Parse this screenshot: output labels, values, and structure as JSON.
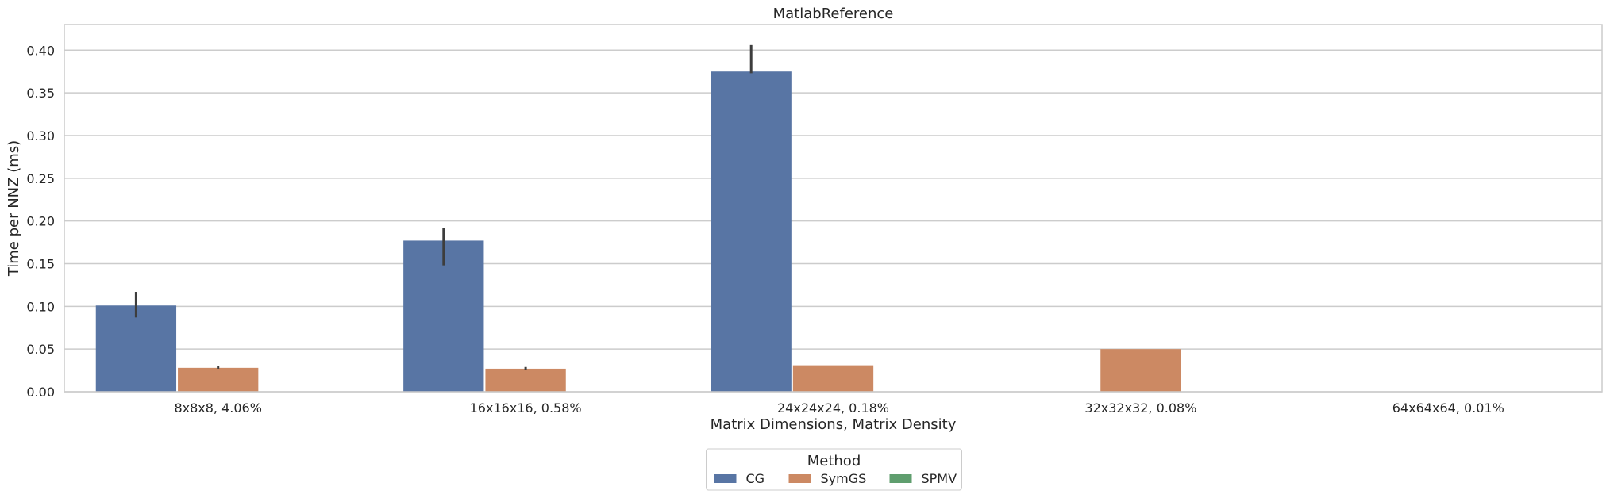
{
  "chart_data": {
    "type": "bar",
    "title": "MatlabReference",
    "xlabel": "Matrix Dimensions, Matrix Density",
    "ylabel": "Time per NNZ (ms)",
    "categories": [
      "8x8x8, 4.06%",
      "16x16x16, 0.58%",
      "24x24x24, 0.18%",
      "32x32x32, 0.08%",
      "64x64x64, 0.01%"
    ],
    "ylim": [
      0,
      0.43
    ],
    "yticks": [
      "0.00",
      "0.05",
      "0.10",
      "0.15",
      "0.20",
      "0.25",
      "0.30",
      "0.35",
      "0.40"
    ],
    "grid": "horizontal",
    "legend": {
      "title": "Method",
      "placement": "bottom-center"
    },
    "series": [
      {
        "name": "CG",
        "color": "#5875a4",
        "values": [
          0.101,
          0.177,
          0.375,
          null,
          null
        ],
        "error_low": [
          0.087,
          0.148,
          0.373,
          null,
          null
        ],
        "error_high": [
          0.117,
          0.192,
          0.406,
          null,
          null
        ]
      },
      {
        "name": "SymGS",
        "color": "#cc8963",
        "values": [
          0.028,
          0.027,
          0.031,
          0.05,
          null
        ],
        "error_low": [
          0.027,
          0.026,
          null,
          null,
          null
        ],
        "error_high": [
          0.03,
          0.029,
          null,
          null,
          null
        ]
      },
      {
        "name": "SPMV",
        "color": "#5f9e6e",
        "values": [
          null,
          null,
          null,
          null,
          null
        ],
        "error_low": [
          null,
          null,
          null,
          null,
          null
        ],
        "error_high": [
          null,
          null,
          null,
          null,
          null
        ]
      }
    ]
  }
}
